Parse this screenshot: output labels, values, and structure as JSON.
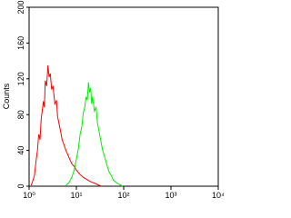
{
  "chart_data": {
    "type": "line",
    "ylabel": "Counts",
    "xscale": "log",
    "xlim": [
      1,
      10000
    ],
    "xticks": [
      {
        "value": 1,
        "label": "10⁰"
      },
      {
        "value": 10,
        "label": "10¹"
      },
      {
        "value": 100,
        "label": "10²"
      },
      {
        "value": 1000,
        "label": "10³"
      },
      {
        "value": 10000,
        "label": "10⁴"
      }
    ],
    "ylim": [
      0,
      200
    ],
    "yticks": [
      0,
      40,
      80,
      120,
      160,
      200
    ],
    "series": [
      {
        "color": "#ff0000",
        "x": [
          1.1,
          1.2,
          1.3,
          1.4,
          1.5,
          1.6,
          1.7,
          1.8,
          2.0,
          2.1,
          2.2,
          2.35,
          2.5,
          2.65,
          2.8,
          3.0,
          3.2,
          3.5,
          3.8,
          4.0,
          4.3,
          4.6,
          5.0,
          5.5,
          6.0,
          7.0,
          8.0,
          9.0,
          10,
          12,
          14,
          16,
          20,
          25,
          30,
          35
        ],
        "values": [
          1,
          6,
          12,
          28,
          40,
          58,
          52,
          75,
          95,
          88,
          118,
          112,
          135,
          122,
          126,
          108,
          112,
          92,
          96,
          78,
          70,
          62,
          52,
          46,
          40,
          32,
          25,
          22,
          18,
          13,
          10,
          8,
          5,
          3,
          1,
          0
        ]
      },
      {
        "color": "#00ee00",
        "x": [
          6,
          7,
          8,
          9,
          10,
          11,
          12,
          13,
          14,
          15,
          16,
          17,
          18,
          19,
          20,
          21,
          22,
          24,
          26,
          28,
          30,
          33,
          36,
          40,
          45,
          50,
          55,
          60,
          70,
          80,
          95
        ],
        "values": [
          1,
          4,
          10,
          18,
          30,
          42,
          58,
          66,
          82,
          88,
          100,
          96,
          116,
          105,
          110,
          92,
          100,
          84,
          88,
          70,
          62,
          50,
          40,
          32,
          22,
          15,
          12,
          7,
          4,
          2,
          0
        ]
      }
    ]
  }
}
